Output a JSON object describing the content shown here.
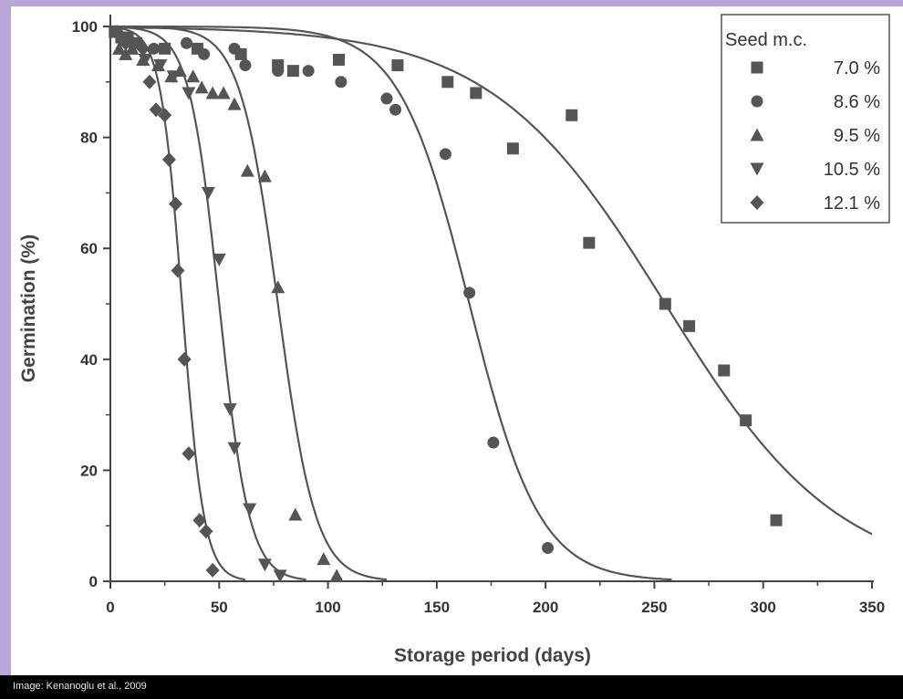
{
  "caption": "Image: Kenanoglu et al., 2009",
  "chart_data": {
    "type": "scatter",
    "xlabel": "Storage period (days)",
    "ylabel": "Germination (%)",
    "xlim": [
      0,
      350
    ],
    "ylim": [
      0,
      100
    ],
    "xticks": [
      "0",
      "50",
      "100",
      "150",
      "200",
      "250",
      "300",
      "350"
    ],
    "yticks": [
      "0",
      "20",
      "40",
      "60",
      "80",
      "100"
    ],
    "grid": false,
    "legend": {
      "title": "Seed m.c.",
      "placement": "top-right"
    },
    "colors": {
      "marks": "#555555",
      "axes": "#444444"
    },
    "series": [
      {
        "name": "7.0 %",
        "marker": "square",
        "points": [
          [
            2,
            99
          ],
          [
            5,
            98
          ],
          [
            8,
            98
          ],
          [
            12,
            97
          ],
          [
            25,
            96
          ],
          [
            40,
            96
          ],
          [
            60,
            95
          ],
          [
            77,
            93
          ],
          [
            84,
            92
          ],
          [
            105,
            94
          ],
          [
            132,
            93
          ],
          [
            155,
            90
          ],
          [
            168,
            88
          ],
          [
            185,
            78
          ],
          [
            212,
            84
          ],
          [
            220,
            61
          ],
          [
            255,
            50
          ],
          [
            266,
            46
          ],
          [
            282,
            38
          ],
          [
            292,
            29
          ],
          [
            306,
            11
          ]
        ],
        "fit": {
          "t50": 255,
          "slope": 0.025
        }
      },
      {
        "name": "8.6 %",
        "marker": "circle",
        "points": [
          [
            3,
            99
          ],
          [
            6,
            98
          ],
          [
            10,
            97
          ],
          [
            20,
            96
          ],
          [
            35,
            97
          ],
          [
            43,
            95
          ],
          [
            57,
            96
          ],
          [
            62,
            93
          ],
          [
            77,
            92
          ],
          [
            91,
            92
          ],
          [
            106,
            90
          ],
          [
            127,
            87
          ],
          [
            131,
            85
          ],
          [
            154,
            77
          ],
          [
            165,
            52
          ],
          [
            176,
            25
          ],
          [
            201,
            6
          ]
        ],
        "fit": {
          "t50": 165,
          "slope": 0.062
        }
      },
      {
        "name": "9.5 %",
        "marker": "triangle-up",
        "points": [
          [
            4,
            96
          ],
          [
            7,
            95
          ],
          [
            10,
            96
          ],
          [
            15,
            94
          ],
          [
            22,
            93
          ],
          [
            28,
            91
          ],
          [
            32,
            92
          ],
          [
            38,
            91
          ],
          [
            42,
            89
          ],
          [
            47,
            88
          ],
          [
            52,
            88
          ],
          [
            57,
            86
          ],
          [
            63,
            74
          ],
          [
            71,
            73
          ],
          [
            77,
            53
          ],
          [
            85,
            12
          ],
          [
            98,
            4
          ],
          [
            104,
            1
          ]
        ],
        "fit": {
          "t50": 77,
          "slope": 0.115
        }
      },
      {
        "name": "10.5 %",
        "marker": "triangle-down",
        "points": [
          [
            5,
            98
          ],
          [
            10,
            97
          ],
          [
            16,
            94
          ],
          [
            23,
            93
          ],
          [
            29,
            91
          ],
          [
            36,
            88
          ],
          [
            45,
            70
          ],
          [
            50,
            58
          ],
          [
            55,
            31
          ],
          [
            57,
            24
          ],
          [
            64,
            13
          ],
          [
            71,
            3
          ],
          [
            78,
            1
          ]
        ],
        "fit": {
          "t50": 50,
          "slope": 0.145
        }
      },
      {
        "name": "12.1 %",
        "marker": "diamond",
        "points": [
          [
            3,
            99
          ],
          [
            7,
            97
          ],
          [
            15,
            96
          ],
          [
            18,
            90
          ],
          [
            21,
            85
          ],
          [
            25,
            84
          ],
          [
            27,
            76
          ],
          [
            30,
            68
          ],
          [
            31,
            56
          ],
          [
            34,
            40
          ],
          [
            36,
            23
          ],
          [
            41,
            11
          ],
          [
            44,
            9
          ],
          [
            47,
            2
          ]
        ],
        "fit": {
          "t50": 33,
          "slope": 0.2
        }
      }
    ]
  }
}
